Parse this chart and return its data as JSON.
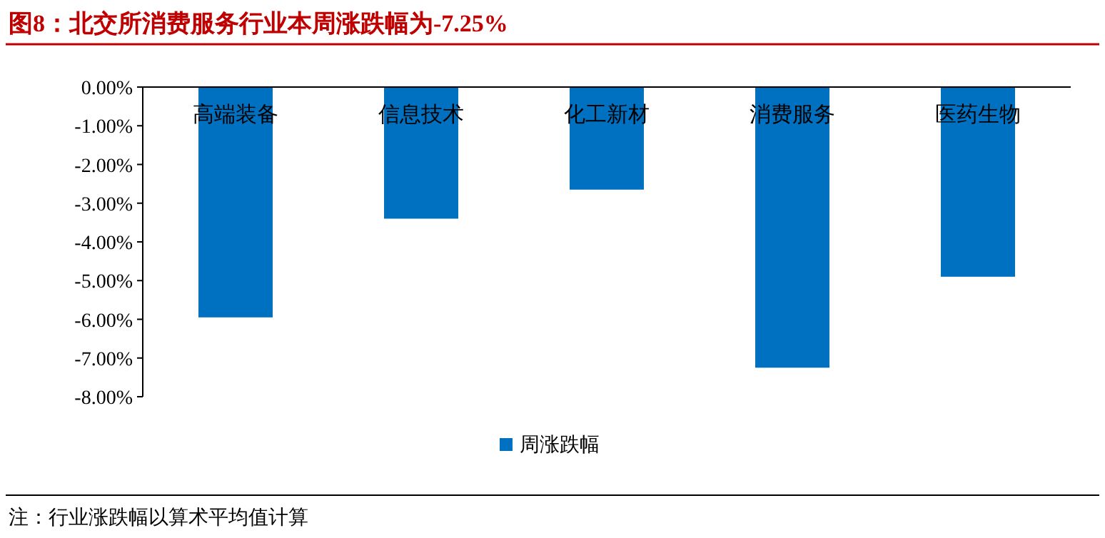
{
  "chart_data": {
    "type": "bar",
    "title": "图8：北交所消费服务行业本周涨跌幅为-7.25%",
    "categories": [
      "高端装备",
      "信息技术",
      "化工新材",
      "消费服务",
      "医药生物"
    ],
    "series": [
      {
        "name": "周涨跌幅",
        "color": "#0070c0",
        "values": [
          -5.95,
          -3.4,
          -2.65,
          -7.25,
          -4.9
        ]
      }
    ],
    "ylim": [
      -8,
      0
    ],
    "yticks": [
      {
        "value": 0,
        "label": "0.00%"
      },
      {
        "value": -1,
        "label": "-1.00%"
      },
      {
        "value": -2,
        "label": "-2.00%"
      },
      {
        "value": -3,
        "label": "-3.00%"
      },
      {
        "value": -4,
        "label": "-4.00%"
      },
      {
        "value": -5,
        "label": "-5.00%"
      },
      {
        "value": -6,
        "label": "-6.00%"
      },
      {
        "value": -7,
        "label": "-7.00%"
      },
      {
        "value": -8,
        "label": "-8.00%"
      }
    ],
    "grid": false,
    "legend": "bottom",
    "annotations": [
      "注：行业涨跌幅以算术平均值计算"
    ]
  }
}
